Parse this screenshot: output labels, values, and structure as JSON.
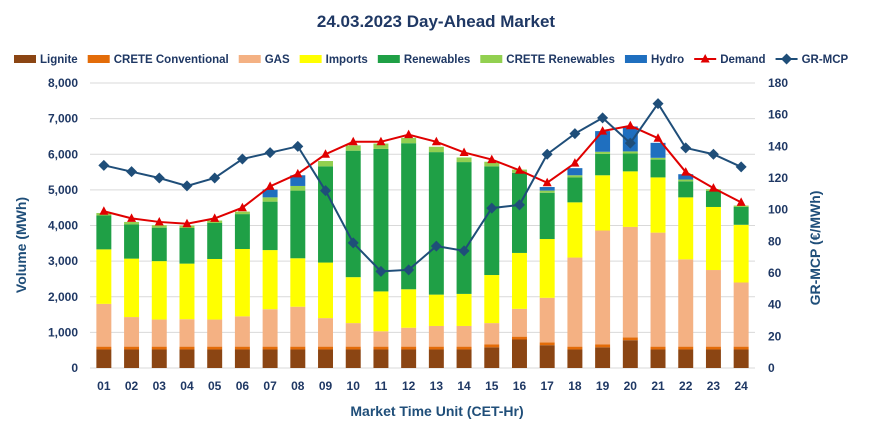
{
  "chart_data": {
    "type": "bar",
    "subtype": "stacked-bar-with-lines",
    "title": "24.03.2023  Day-Ahead Market",
    "xlabel": "Market Time Unit (CET-Hr)",
    "ylabel": "Volume (MWh)",
    "y2label": "GR-MCP (€/MWh)",
    "ylim": [
      0,
      8000
    ],
    "y2lim": [
      0,
      180
    ],
    "yticks": [
      "0",
      "1,000",
      "2,000",
      "3,000",
      "4,000",
      "5,000",
      "6,000",
      "7,000",
      "8,000"
    ],
    "y2ticks": [
      "0",
      "20",
      "40",
      "60",
      "80",
      "100",
      "120",
      "140",
      "160",
      "180"
    ],
    "grid": "horizontal",
    "legend_position": "top",
    "categories": [
      "01",
      "02",
      "03",
      "04",
      "05",
      "06",
      "07",
      "08",
      "09",
      "10",
      "11",
      "12",
      "13",
      "14",
      "15",
      "16",
      "17",
      "18",
      "19",
      "20",
      "21",
      "22",
      "23",
      "24"
    ],
    "series": [
      {
        "name": "Lignite",
        "kind": "bar",
        "color": "#8b4513",
        "values": [
          520,
          520,
          520,
          520,
          520,
          520,
          520,
          520,
          520,
          520,
          520,
          520,
          520,
          520,
          580,
          800,
          640,
          520,
          580,
          780,
          520,
          520,
          520,
          520
        ]
      },
      {
        "name": "CRETE Conventional",
        "kind": "bar",
        "color": "#e36c09",
        "values": [
          80,
          80,
          80,
          80,
          80,
          80,
          80,
          80,
          80,
          80,
          80,
          80,
          80,
          80,
          80,
          80,
          80,
          80,
          80,
          80,
          80,
          80,
          80,
          80
        ]
      },
      {
        "name": "GAS",
        "kind": "bar",
        "color": "#f4b183",
        "values": [
          1200,
          830,
          760,
          770,
          760,
          850,
          1050,
          1120,
          800,
          660,
          430,
          530,
          580,
          580,
          600,
          780,
          1250,
          2500,
          3200,
          3100,
          3200,
          2450,
          2150,
          1800
        ]
      },
      {
        "name": "Imports",
        "kind": "bar",
        "color": "#ffff00",
        "values": [
          1530,
          1640,
          1640,
          1560,
          1700,
          1890,
          1660,
          1360,
          1560,
          1290,
          1120,
          1080,
          880,
          900,
          1350,
          1570,
          1650,
          1550,
          1550,
          1560,
          1550,
          1740,
          1770,
          1620
        ]
      },
      {
        "name": "Renewables",
        "kind": "bar",
        "color": "#1fa046",
        "values": [
          950,
          960,
          940,
          1000,
          1010,
          980,
          1360,
          1900,
          2700,
          3550,
          4000,
          4100,
          4000,
          3700,
          3050,
          2250,
          1300,
          700,
          600,
          500,
          500,
          450,
          450,
          500
        ]
      },
      {
        "name": "CRETE Renewables",
        "kind": "bar",
        "color": "#92d050",
        "values": [
          70,
          70,
          70,
          70,
          70,
          70,
          120,
          130,
          150,
          150,
          150,
          150,
          150,
          130,
          130,
          90,
          60,
          60,
          60,
          60,
          50,
          50,
          50,
          40
        ]
      },
      {
        "name": "Hydro",
        "kind": "bar",
        "color": "#1f6fbf",
        "values": [
          0,
          0,
          0,
          0,
          0,
          0,
          220,
          300,
          0,
          0,
          0,
          0,
          0,
          0,
          0,
          0,
          100,
          200,
          580,
          700,
          420,
          150,
          0,
          0
        ]
      },
      {
        "name": "Demand",
        "kind": "line",
        "axis": "left",
        "color": "#e00000",
        "marker": "triangle",
        "values": [
          4400,
          4200,
          4100,
          4050,
          4200,
          4500,
          5100,
          5450,
          6000,
          6350,
          6350,
          6550,
          6350,
          6050,
          5850,
          5550,
          5200,
          5750,
          6650,
          6800,
          6450,
          5500,
          5050,
          4650
        ]
      },
      {
        "name": "GR-MCP",
        "kind": "line",
        "axis": "right",
        "color": "#1f4e79",
        "marker": "diamond",
        "values": [
          128,
          124,
          120,
          115,
          120,
          132,
          136,
          140,
          112,
          79,
          61,
          62,
          77,
          74,
          101,
          103,
          135,
          148,
          158,
          142,
          167,
          139,
          135,
          127
        ]
      }
    ]
  }
}
